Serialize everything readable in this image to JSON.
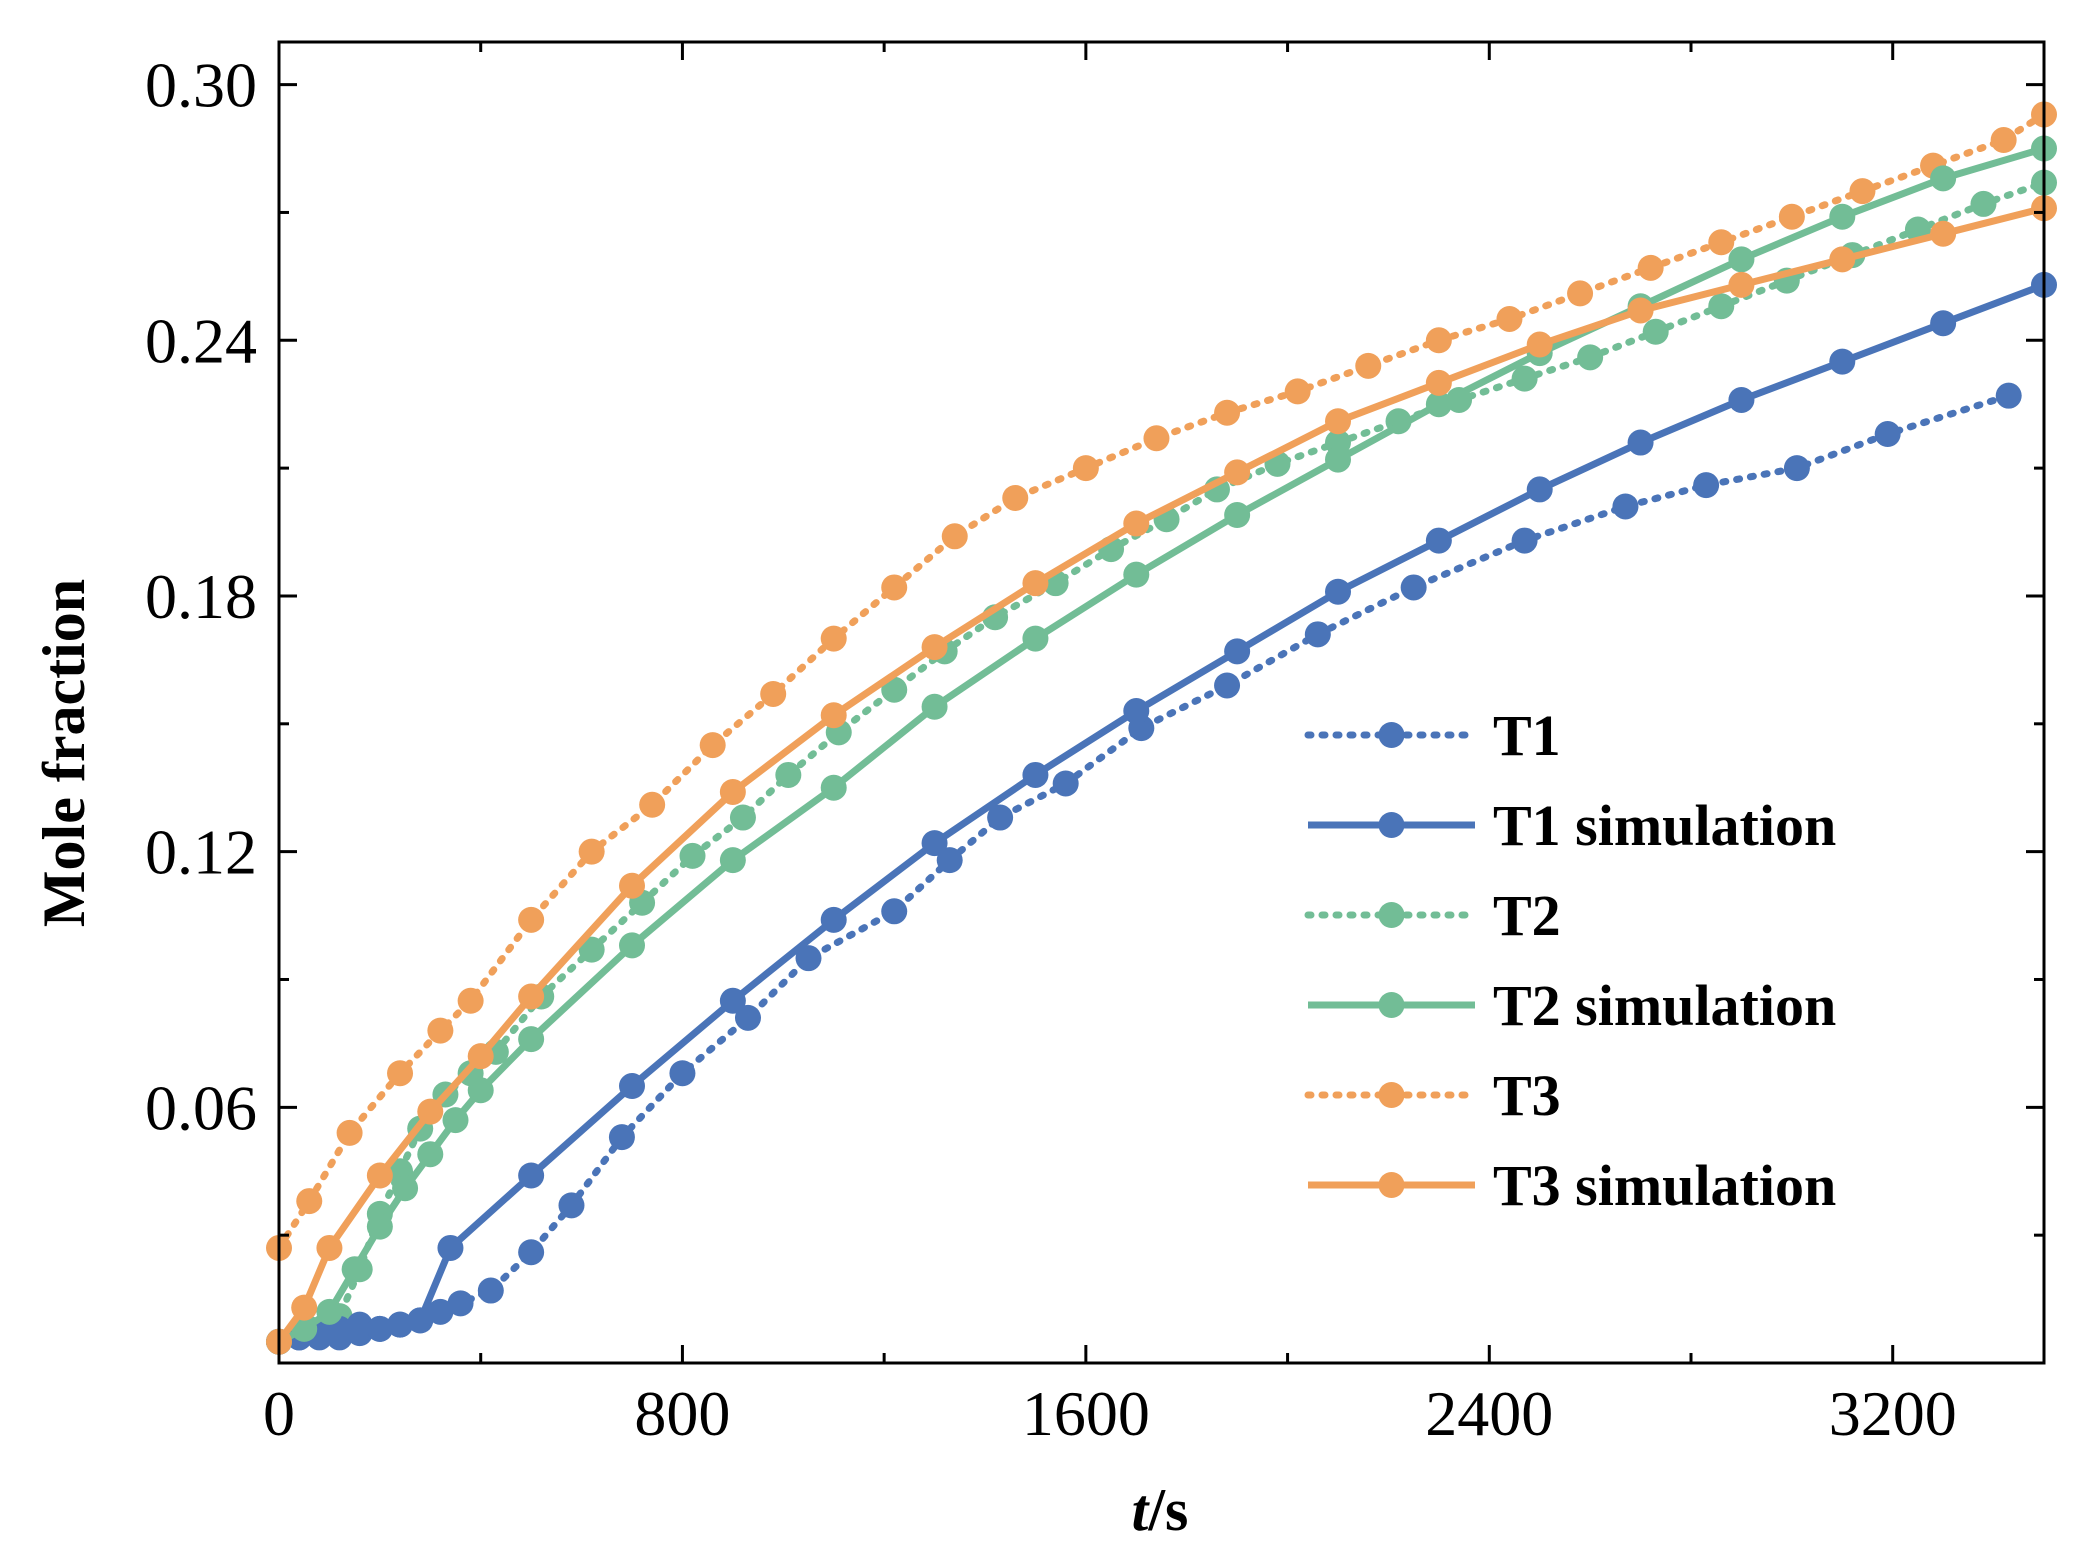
{
  "chart_data": {
    "type": "line",
    "xlabel_italic": "t",
    "xlabel_unit": "/s",
    "ylabel": "Mole fraction",
    "xlim": [
      0,
      3500
    ],
    "ylim": [
      0.0,
      0.31
    ],
    "xticks": [
      0,
      800,
      1600,
      2400,
      3200
    ],
    "xtick_labels": [
      "0",
      "800",
      "1600",
      "2400",
      "3200"
    ],
    "yticks": [
      0.06,
      0.12,
      0.18,
      0.24,
      0.3
    ],
    "ytick_labels": [
      "0.06",
      "0.12",
      "0.18",
      "0.24",
      "0.30"
    ],
    "legend_position": "lower-right",
    "series": [
      {
        "name": "T1",
        "style": "dotted",
        "color": "#4a74b8",
        "x": [
          0,
          40,
          80,
          120,
          160,
          200,
          240,
          280,
          320,
          360,
          420,
          500,
          580,
          680,
          800,
          930,
          1050,
          1220,
          1330,
          1430,
          1560,
          1710,
          1880,
          2060,
          2250,
          2470,
          2670,
          2830,
          3010,
          3190,
          3430
        ],
        "y": [
          0.005,
          0.006,
          0.006,
          0.006,
          0.007,
          0.008,
          0.009,
          0.01,
          0.012,
          0.014,
          0.017,
          0.026,
          0.037,
          0.053,
          0.068,
          0.081,
          0.095,
          0.106,
          0.118,
          0.128,
          0.136,
          0.149,
          0.159,
          0.171,
          0.182,
          0.193,
          0.201,
          0.206,
          0.21,
          0.218,
          0.227
        ]
      },
      {
        "name": "T1 simulation",
        "style": "solid",
        "color": "#4a74b8",
        "x": [
          0,
          40,
          80,
          120,
          160,
          200,
          240,
          280,
          340,
          500,
          700,
          900,
          1100,
          1300,
          1500,
          1700,
          1900,
          2100,
          2300,
          2500,
          2700,
          2900,
          3100,
          3300,
          3500
        ],
        "y": [
          0.005,
          0.006,
          0.007,
          0.008,
          0.009,
          0.008,
          0.009,
          0.01,
          0.027,
          0.044,
          0.065,
          0.085,
          0.104,
          0.122,
          0.138,
          0.153,
          0.167,
          0.181,
          0.193,
          0.205,
          0.216,
          0.226,
          0.235,
          0.244,
          0.253
        ]
      },
      {
        "name": "T2",
        "style": "dotted",
        "color": "#72bd96",
        "x": [
          0,
          60,
          120,
          160,
          200,
          240,
          280,
          330,
          380,
          430,
          520,
          620,
          720,
          820,
          920,
          1010,
          1110,
          1220,
          1320,
          1420,
          1540,
          1650,
          1760,
          1860,
          1980,
          2100,
          2220,
          2340,
          2470,
          2600,
          2730,
          2860,
          2990,
          3120,
          3250,
          3380,
          3500
        ],
        "y": [
          0.005,
          0.008,
          0.011,
          0.022,
          0.035,
          0.045,
          0.055,
          0.063,
          0.068,
          0.073,
          0.086,
          0.097,
          0.108,
          0.119,
          0.128,
          0.138,
          0.148,
          0.158,
          0.167,
          0.175,
          0.183,
          0.191,
          0.198,
          0.205,
          0.211,
          0.216,
          0.221,
          0.226,
          0.231,
          0.236,
          0.242,
          0.248,
          0.254,
          0.26,
          0.266,
          0.272,
          0.277
        ]
      },
      {
        "name": "T2 simulation",
        "style": "solid",
        "color": "#72bd96",
        "x": [
          0,
          50,
          100,
          150,
          200,
          250,
          300,
          350,
          400,
          500,
          700,
          900,
          1100,
          1300,
          1500,
          1700,
          1900,
          2100,
          2300,
          2500,
          2700,
          2900,
          3100,
          3300,
          3500
        ],
        "y": [
          0.005,
          0.008,
          0.012,
          0.022,
          0.032,
          0.041,
          0.049,
          0.057,
          0.064,
          0.076,
          0.098,
          0.118,
          0.135,
          0.154,
          0.17,
          0.185,
          0.199,
          0.212,
          0.225,
          0.237,
          0.248,
          0.259,
          0.269,
          0.278,
          0.285
        ]
      },
      {
        "name": "T3",
        "style": "dotted",
        "color": "#f0a05a",
        "x": [
          0,
          60,
          140,
          240,
          320,
          380,
          500,
          620,
          740,
          860,
          980,
          1100,
          1220,
          1340,
          1460,
          1600,
          1740,
          1880,
          2020,
          2160,
          2300,
          2440,
          2580,
          2720,
          2860,
          3000,
          3140,
          3280,
          3420,
          3500
        ],
        "y": [
          0.027,
          0.038,
          0.054,
          0.068,
          0.078,
          0.085,
          0.104,
          0.12,
          0.131,
          0.145,
          0.157,
          0.17,
          0.182,
          0.194,
          0.203,
          0.21,
          0.217,
          0.223,
          0.228,
          0.234,
          0.24,
          0.245,
          0.251,
          0.257,
          0.263,
          0.269,
          0.275,
          0.281,
          0.287,
          0.293
        ]
      },
      {
        "name": "T3 simulation",
        "style": "solid",
        "color": "#f0a05a",
        "x": [
          0,
          50,
          100,
          200,
          300,
          400,
          500,
          700,
          900,
          1100,
          1300,
          1500,
          1700,
          1900,
          2100,
          2300,
          2500,
          2700,
          2900,
          3100,
          3300,
          3500
        ],
        "y": [
          0.005,
          0.013,
          0.027,
          0.044,
          0.059,
          0.072,
          0.086,
          0.112,
          0.134,
          0.152,
          0.168,
          0.183,
          0.197,
          0.209,
          0.221,
          0.23,
          0.239,
          0.247,
          0.253,
          0.259,
          0.265,
          0.271
        ]
      }
    ]
  }
}
